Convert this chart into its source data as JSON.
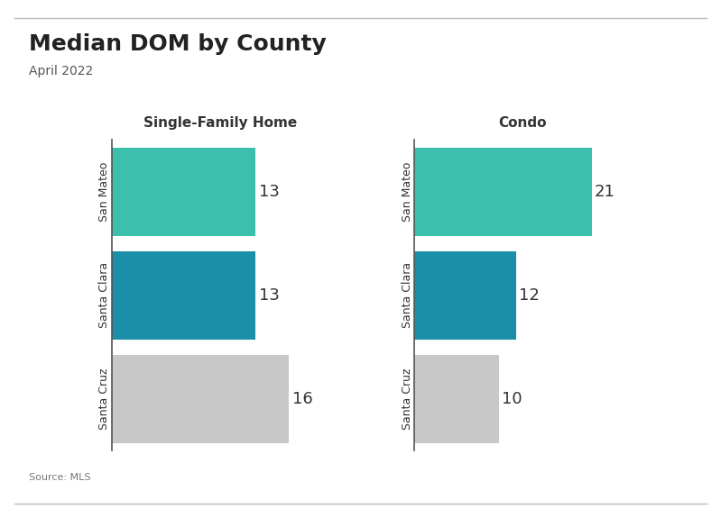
{
  "title": "Median DOM by County",
  "subtitle": "April 2022",
  "source": "Source: MLS",
  "left_panel_title": "Single-Family Home",
  "right_panel_title": "Condo",
  "categories": [
    "San Mateo",
    "Santa Clara",
    "Santa Cruz"
  ],
  "sfh_values": [
    13,
    13,
    16
  ],
  "condo_values": [
    21,
    12,
    10
  ],
  "bar_colors": [
    "#3dbfad",
    "#1b8fa8",
    "#c8c8c8"
  ],
  "background_color": "#ffffff",
  "title_fontsize": 18,
  "subtitle_fontsize": 10,
  "label_fontsize": 10,
  "source_fontsize": 8,
  "panel_title_fontsize": 11,
  "value_fontsize": 13
}
